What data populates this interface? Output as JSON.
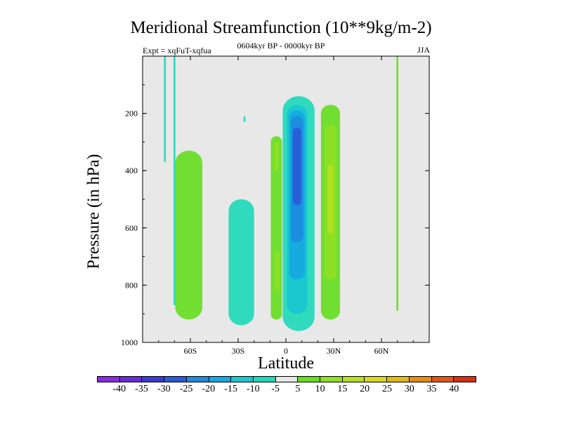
{
  "chart_data": {
    "type": "heatmap",
    "title": "Meridional Streamfunction (10**9kg/m-2)",
    "subtitle_left": "Expt = xqFuT-xqfua",
    "subtitle_center": "0604kyr BP - 0000kyr BP",
    "subtitle_right": "JJA",
    "xlabel": "Latitude",
    "ylabel": "Pressure (in hPa)",
    "xlim": [
      -90,
      90
    ],
    "ylim": [
      1000,
      0
    ],
    "x_ticks": [
      {
        "value": -60,
        "label": "60S"
      },
      {
        "value": -30,
        "label": "30S"
      },
      {
        "value": 0,
        "label": "0"
      },
      {
        "value": 30,
        "label": "30N"
      },
      {
        "value": 60,
        "label": "60N"
      }
    ],
    "y_ticks": [
      {
        "value": 200,
        "label": "200"
      },
      {
        "value": 400,
        "label": "400"
      },
      {
        "value": 600,
        "label": "600"
      },
      {
        "value": 800,
        "label": "800"
      },
      {
        "value": 1000,
        "label": "1000"
      }
    ],
    "background_color": "#e8e8e8",
    "colorbar": {
      "labels": [
        "-40",
        "-35",
        "-30",
        "-25",
        "-20",
        "-15",
        "-10",
        "-5",
        "5",
        "10",
        "15",
        "20",
        "25",
        "30",
        "35",
        "40"
      ],
      "colors": [
        "#8a2be2",
        "#6a2bd8",
        "#3a3ad0",
        "#2a5ad8",
        "#1e8ae0",
        "#16a8e0",
        "#18c8d0",
        "#20d8b8",
        "#e8e8e8",
        "#66dd22",
        "#8ee022",
        "#b4e022",
        "#d8d820",
        "#e4b818",
        "#e48c18",
        "#e05818",
        "#d83010"
      ]
    },
    "contour_regions": [
      {
        "name": "sh-polar-line-a",
        "level": -5,
        "lat_center": -76,
        "lat_half_width": 0.6,
        "p_top": 0,
        "p_bottom": 370
      },
      {
        "name": "sh-polar-line-b",
        "level": -5,
        "lat_center": -70,
        "lat_half_width": 0.6,
        "p_top": 0,
        "p_bottom": 870
      },
      {
        "name": "sh-mid-positive",
        "level": 5,
        "lat_center": -61,
        "lat_half_width": 8.5,
        "p_top": 330,
        "p_bottom": 920
      },
      {
        "name": "sh-subtropic-negative",
        "level": -5,
        "lat_center": -28,
        "lat_half_width": 8,
        "p_top": 500,
        "p_bottom": 940
      },
      {
        "name": "sh-small-dot",
        "level": -5,
        "lat_center": -26,
        "lat_half_width": 0.6,
        "p_top": 210,
        "p_bottom": 230
      },
      {
        "name": "eq-positive-left",
        "level": 5,
        "lat_center": -6,
        "lat_half_width": 3.5,
        "p_top": 280,
        "p_bottom": 920
      },
      {
        "name": "eq-positive-left-core",
        "level": 10,
        "lat_center": -5.5,
        "lat_half_width": 1.6,
        "p_top": 680,
        "p_bottom": 820
      },
      {
        "name": "eq-positive-left-upper",
        "level": 10,
        "lat_center": -6,
        "lat_half_width": 1.4,
        "p_top": 300,
        "p_bottom": 400
      },
      {
        "name": "eq-negative-outer",
        "level": -5,
        "lat_center": 8,
        "lat_half_width": 10,
        "p_top": 140,
        "p_bottom": 960
      },
      {
        "name": "eq-negative-10",
        "level": -10,
        "lat_center": 7,
        "lat_half_width": 6.5,
        "p_top": 170,
        "p_bottom": 900
      },
      {
        "name": "eq-negative-15",
        "level": -15,
        "lat_center": 7,
        "lat_half_width": 5,
        "p_top": 190,
        "p_bottom": 780
      },
      {
        "name": "eq-negative-20",
        "level": -20,
        "lat_center": 7,
        "lat_half_width": 3.8,
        "p_top": 210,
        "p_bottom": 650
      },
      {
        "name": "eq-negative-25",
        "level": -25,
        "lat_center": 7,
        "lat_half_width": 2.6,
        "p_top": 250,
        "p_bottom": 520
      },
      {
        "name": "nh-positive",
        "level": 5,
        "lat_center": 28,
        "lat_half_width": 6,
        "p_top": 170,
        "p_bottom": 920
      },
      {
        "name": "nh-positive-10",
        "level": 10,
        "lat_center": 28,
        "lat_half_width": 3.5,
        "p_top": 240,
        "p_bottom": 780
      },
      {
        "name": "nh-positive-15",
        "level": 15,
        "lat_center": 28,
        "lat_half_width": 1.8,
        "p_top": 380,
        "p_bottom": 620
      },
      {
        "name": "nh-polar-line",
        "level": 5,
        "lat_center": 70,
        "lat_half_width": 0.6,
        "p_top": 0,
        "p_bottom": 890
      }
    ]
  }
}
